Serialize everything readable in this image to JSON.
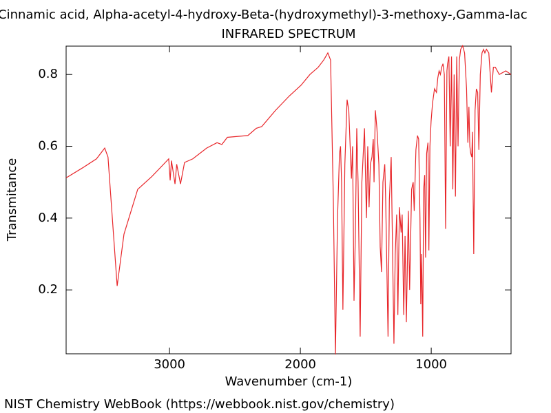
{
  "chart_data": {
    "type": "line",
    "title": "Cinnamic acid, Alpha-acetyl-4-hydroxy-Beta-(hydroxymethyl)-3-methoxy-,Gamma-lac",
    "subtitle": "INFRARED SPECTRUM",
    "x_label": "Wavenumber (cm-1)",
    "y_label": "Transmitance",
    "footer": "NIST Chemistry WebBook (https://webbook.nist.gov/chemistry)",
    "xlim": [
      3790,
      390
    ],
    "ylim": [
      0.022,
      0.879
    ],
    "xticks": [
      3000,
      2000,
      1000
    ],
    "yticks": [
      0.2,
      0.4,
      0.6,
      0.8
    ],
    "x": [
      3790,
      3664,
      3558,
      3495,
      3470,
      3400,
      3348,
      3243,
      3137,
      3032,
      3006,
      2995,
      2985,
      2958,
      2945,
      2916,
      2885,
      2822,
      2716,
      2637,
      2600,
      2558,
      2401,
      2337,
      2295,
      2190,
      2085,
      1995,
      1927,
      1864,
      1822,
      1790,
      1769,
      1748,
      1732,
      1716,
      1701,
      1693,
      1685,
      1675,
      1660,
      1643,
      1630,
      1610,
      1601,
      1590,
      1580,
      1569,
      1559,
      1543,
      1530,
      1510,
      1495,
      1485,
      1475,
      1465,
      1453,
      1443,
      1437,
      1427,
      1415,
      1400,
      1390,
      1380,
      1369,
      1355,
      1348,
      1330,
      1320,
      1306,
      1295,
      1285,
      1275,
      1264,
      1255,
      1243,
      1230,
      1222,
      1210,
      1200,
      1190,
      1175,
      1165,
      1150,
      1138,
      1130,
      1117,
      1105,
      1096,
      1086,
      1080,
      1074,
      1065,
      1058,
      1050,
      1043,
      1035,
      1025,
      1018,
      1010,
      1001,
      990,
      975,
      960,
      950,
      940,
      930,
      920,
      910,
      900,
      890,
      880,
      875,
      865,
      855,
      845,
      835,
      825,
      815,
      805,
      795,
      785,
      775,
      760,
      745,
      730,
      720,
      712,
      705,
      698,
      690,
      685,
      675,
      665,
      655,
      645,
      636,
      625,
      612,
      600,
      590,
      578,
      560,
      540,
      525,
      510,
      480,
      430,
      390
    ],
    "series": [
      {
        "name": "IR",
        "color": "#e8262a",
        "values": [
          0.512,
          0.54,
          0.565,
          0.595,
          0.57,
          0.211,
          0.355,
          0.48,
          0.515,
          0.555,
          0.565,
          0.505,
          0.56,
          0.495,
          0.55,
          0.495,
          0.555,
          0.565,
          0.595,
          0.61,
          0.605,
          0.625,
          0.63,
          0.65,
          0.655,
          0.7,
          0.74,
          0.77,
          0.8,
          0.82,
          0.84,
          0.86,
          0.84,
          0.45,
          0.02,
          0.4,
          0.58,
          0.6,
          0.5,
          0.145,
          0.55,
          0.73,
          0.7,
          0.51,
          0.6,
          0.17,
          0.35,
          0.65,
          0.5,
          0.07,
          0.5,
          0.65,
          0.4,
          0.6,
          0.43,
          0.55,
          0.57,
          0.62,
          0.5,
          0.7,
          0.65,
          0.55,
          0.32,
          0.25,
          0.5,
          0.55,
          0.45,
          0.07,
          0.45,
          0.57,
          0.3,
          0.05,
          0.3,
          0.41,
          0.13,
          0.43,
          0.36,
          0.41,
          0.13,
          0.35,
          0.11,
          0.42,
          0.2,
          0.48,
          0.5,
          0.42,
          0.59,
          0.63,
          0.62,
          0.4,
          0.16,
          0.3,
          0.07,
          0.48,
          0.52,
          0.29,
          0.58,
          0.61,
          0.31,
          0.6,
          0.67,
          0.72,
          0.76,
          0.75,
          0.79,
          0.81,
          0.8,
          0.82,
          0.83,
          0.8,
          0.37,
          0.81,
          0.83,
          0.85,
          0.6,
          0.85,
          0.48,
          0.8,
          0.46,
          0.85,
          0.6,
          0.84,
          0.87,
          0.88,
          0.86,
          0.76,
          0.61,
          0.71,
          0.6,
          0.58,
          0.57,
          0.64,
          0.3,
          0.7,
          0.76,
          0.75,
          0.59,
          0.8,
          0.86,
          0.87,
          0.86,
          0.87,
          0.86,
          0.75,
          0.82,
          0.82,
          0.8,
          0.81,
          0.8
        ]
      }
    ]
  }
}
